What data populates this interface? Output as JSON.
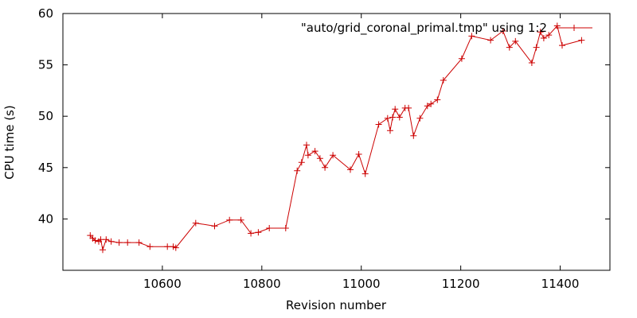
{
  "chart_data": {
    "type": "line",
    "title": "",
    "xlabel": "Revision number",
    "ylabel": "CPU time (s)",
    "xlim": [
      10400,
      11500
    ],
    "ylim": [
      35,
      60
    ],
    "xticks": [
      10600,
      10800,
      11000,
      11200,
      11400
    ],
    "yticks": [
      40,
      45,
      50,
      55,
      60
    ],
    "grid": false,
    "legend_position": "top-right",
    "series": [
      {
        "name": "\"auto/grid_coronal_primal.tmp\" using 1:2",
        "color": "#cc0000",
        "marker": "plus",
        "points": [
          [
            10455,
            38.4
          ],
          [
            10460,
            38.1
          ],
          [
            10465,
            37.9
          ],
          [
            10472,
            37.8
          ],
          [
            10476,
            38.0
          ],
          [
            10480,
            37.0
          ],
          [
            10487,
            38.0
          ],
          [
            10497,
            37.8
          ],
          [
            10513,
            37.7
          ],
          [
            10530,
            37.7
          ],
          [
            10553,
            37.7
          ],
          [
            10575,
            37.3
          ],
          [
            10610,
            37.3
          ],
          [
            10622,
            37.3
          ],
          [
            10627,
            37.2
          ],
          [
            10667,
            39.6
          ],
          [
            10705,
            39.3
          ],
          [
            10735,
            39.9
          ],
          [
            10758,
            39.9
          ],
          [
            10778,
            38.6
          ],
          [
            10793,
            38.7
          ],
          [
            10815,
            39.1
          ],
          [
            10848,
            39.1
          ],
          [
            10871,
            44.7
          ],
          [
            10880,
            45.5
          ],
          [
            10890,
            47.2
          ],
          [
            10893,
            46.2
          ],
          [
            10907,
            46.6
          ],
          [
            10917,
            45.9
          ],
          [
            10927,
            45.0
          ],
          [
            10943,
            46.2
          ],
          [
            10978,
            44.8
          ],
          [
            10995,
            46.3
          ],
          [
            11008,
            44.4
          ],
          [
            11035,
            49.2
          ],
          [
            11053,
            49.8
          ],
          [
            11058,
            48.6
          ],
          [
            11063,
            49.9
          ],
          [
            11068,
            50.7
          ],
          [
            11077,
            49.9
          ],
          [
            11088,
            50.8
          ],
          [
            11095,
            50.8
          ],
          [
            11105,
            48.1
          ],
          [
            11118,
            49.8
          ],
          [
            11133,
            51.0
          ],
          [
            11140,
            51.2
          ],
          [
            11153,
            51.6
          ],
          [
            11165,
            53.5
          ],
          [
            11202,
            55.6
          ],
          [
            11222,
            57.8
          ],
          [
            11260,
            57.4
          ],
          [
            11285,
            58.3
          ],
          [
            11298,
            56.7
          ],
          [
            11310,
            57.3
          ],
          [
            11343,
            55.2
          ],
          [
            11352,
            56.7
          ],
          [
            11360,
            58.2
          ],
          [
            11367,
            57.6
          ],
          [
            11377,
            57.9
          ],
          [
            11394,
            58.8
          ],
          [
            11404,
            56.9
          ],
          [
            11443,
            57.4
          ]
        ]
      }
    ]
  }
}
